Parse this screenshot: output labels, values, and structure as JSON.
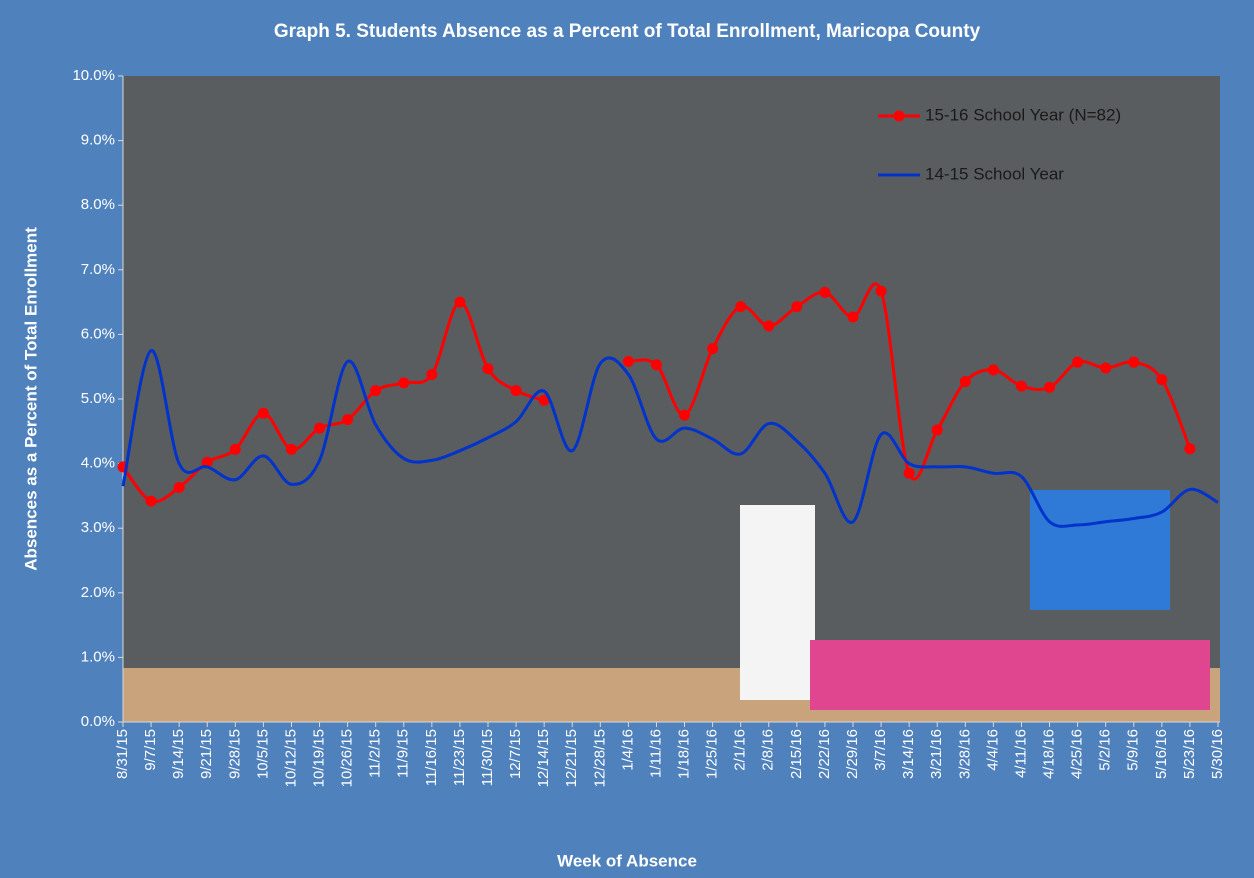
{
  "chart_data": {
    "type": "line",
    "title": "Graph 5. Students Absence as a Percent of Total Enrollment, Maricopa County",
    "x_label": "Week of Absence",
    "y_label": "Absences as a Percent of Total Enrollment",
    "categories": [
      "8/31/15",
      "9/7/15",
      "9/14/15",
      "9/21/15",
      "9/28/15",
      "10/5/15",
      "10/12/15",
      "10/19/15",
      "10/26/15",
      "11/2/15",
      "11/9/15",
      "11/16/15",
      "11/23/15",
      "11/30/15",
      "12/7/15",
      "12/14/15",
      "12/21/15",
      "12/28/15",
      "1/4/16",
      "1/11/16",
      "1/18/16",
      "1/25/16",
      "2/1/16",
      "2/8/16",
      "2/15/16",
      "2/22/16",
      "2/29/16",
      "3/7/16",
      "3/14/16",
      "3/21/16",
      "3/28/16",
      "4/4/16",
      "4/11/16",
      "4/18/16",
      "4/25/16",
      "5/2/16",
      "5/9/16",
      "5/16/16",
      "5/23/16",
      "5/30/16"
    ],
    "series": [
      {
        "name": "15-16 School Year (N=82)",
        "color": "#ff0000",
        "markers": true,
        "values": [
          3.95,
          3.42,
          3.63,
          4.02,
          4.22,
          4.78,
          4.22,
          4.55,
          4.68,
          5.13,
          5.25,
          5.38,
          6.5,
          5.47,
          5.13,
          4.98,
          null,
          null,
          5.58,
          5.53,
          4.75,
          5.78,
          6.43,
          6.13,
          6.43,
          6.65,
          6.27,
          6.67,
          3.85,
          4.52,
          5.27,
          5.45,
          5.2,
          5.18,
          5.57,
          5.48,
          5.57,
          5.3,
          4.23,
          null
        ]
      },
      {
        "name": "14-15 School Year",
        "color": "#0033cc",
        "markers": false,
        "values": [
          3.65,
          5.75,
          4.0,
          3.95,
          3.75,
          4.12,
          3.68,
          4.05,
          5.58,
          4.6,
          4.08,
          4.05,
          4.2,
          4.4,
          4.65,
          5.12,
          4.2,
          5.55,
          5.38,
          4.38,
          4.55,
          4.38,
          4.15,
          4.62,
          4.35,
          3.85,
          3.1,
          4.45,
          4.0,
          3.95,
          3.95,
          3.85,
          3.8,
          3.1,
          3.05,
          3.1,
          3.15,
          3.25,
          3.6,
          3.4
        ]
      }
    ],
    "ylim": [
      0,
      10
    ],
    "yticks": [
      {
        "value": 0,
        "label": "0.0%"
      },
      {
        "value": 1,
        "label": "1.0%"
      },
      {
        "value": 2,
        "label": "2.0%"
      },
      {
        "value": 3,
        "label": "3.0%"
      },
      {
        "value": 4,
        "label": "4.0%"
      },
      {
        "value": 5,
        "label": "5.0%"
      },
      {
        "value": 6,
        "label": "6.0%"
      },
      {
        "value": 7,
        "label": "7.0%"
      },
      {
        "value": 8,
        "label": "8.0%"
      },
      {
        "value": 9,
        "label": "9.0%"
      },
      {
        "value": 10,
        "label": "10.0%"
      }
    ],
    "smooth": true,
    "legend": "top-right"
  }
}
